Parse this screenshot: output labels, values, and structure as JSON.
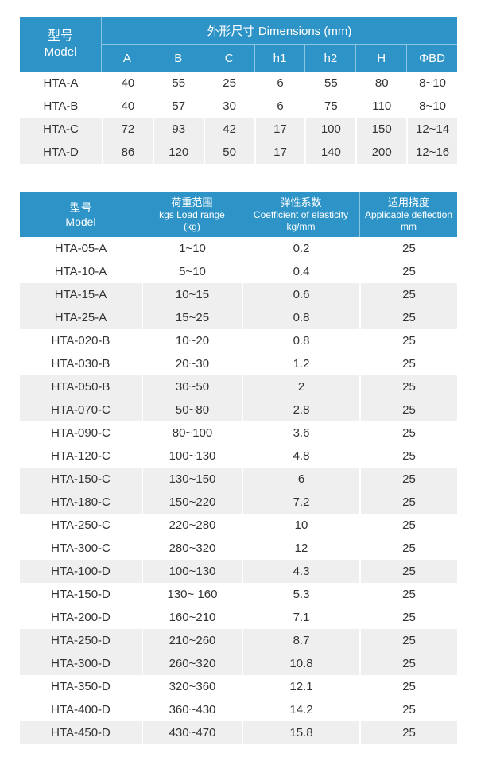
{
  "colors": {
    "header_blue": "#2E94C8",
    "stripe_gray": "#EFEFEF",
    "body_text": "#333333",
    "header_text": "#ffffff"
  },
  "dimensions_table": {
    "model_header_zh": "型号",
    "model_header_en": "Model",
    "group_header": "外形尺寸 Dimensions (mm)",
    "columns": [
      "A",
      "B",
      "C",
      "h1",
      "h2",
      "H",
      "ΦBD"
    ],
    "rows": [
      {
        "model": "HTA-A",
        "values": [
          "40",
          "55",
          "25",
          "6",
          "55",
          "80",
          "8~10"
        ],
        "shaded": false
      },
      {
        "model": "HTA-B",
        "values": [
          "40",
          "57",
          "30",
          "6",
          "75",
          "110",
          "8~10"
        ],
        "shaded": false
      },
      {
        "model": "HTA-C",
        "values": [
          "72",
          "93",
          "42",
          "17",
          "100",
          "150",
          "12~14"
        ],
        "shaded": true
      },
      {
        "model": "HTA-D",
        "values": [
          "86",
          "120",
          "50",
          "17",
          "140",
          "200",
          "12~16"
        ],
        "shaded": true
      }
    ]
  },
  "spec_table": {
    "headers": [
      {
        "lines": [
          "型号",
          "Model"
        ]
      },
      {
        "lines": [
          "荷重范围",
          "kgs Load range",
          "(kg)"
        ]
      },
      {
        "lines": [
          "弹性系数",
          "Coefficient of elasticity",
          "kg/mm"
        ]
      },
      {
        "lines": [
          "适用挠度",
          "Applicable deflection",
          "mm"
        ]
      }
    ],
    "rows": [
      {
        "model": "HTA-05-A",
        "load_range": "1~10",
        "coefficient": "0.2",
        "deflection": "25",
        "shaded": false
      },
      {
        "model": "HTA-10-A",
        "load_range": "5~10",
        "coefficient": "0.4",
        "deflection": "25",
        "shaded": false
      },
      {
        "model": "HTA-15-A",
        "load_range": "10~15",
        "coefficient": "0.6",
        "deflection": "25",
        "shaded": true
      },
      {
        "model": "HTA-25-A",
        "load_range": "15~25",
        "coefficient": "0.8",
        "deflection": "25",
        "shaded": true
      },
      {
        "model": "HTA-020-B",
        "load_range": "10~20",
        "coefficient": "0.8",
        "deflection": "25",
        "shaded": false
      },
      {
        "model": "HTA-030-B",
        "load_range": "20~30",
        "coefficient": "1.2",
        "deflection": "25",
        "shaded": false
      },
      {
        "model": "HTA-050-B",
        "load_range": "30~50",
        "coefficient": "2",
        "deflection": "25",
        "shaded": true
      },
      {
        "model": "HTA-070-C",
        "load_range": "50~80",
        "coefficient": "2.8",
        "deflection": "25",
        "shaded": true
      },
      {
        "model": "HTA-090-C",
        "load_range": "80~100",
        "coefficient": "3.6",
        "deflection": "25",
        "shaded": false
      },
      {
        "model": "HTA-120-C",
        "load_range": "100~130",
        "coefficient": "4.8",
        "deflection": "25",
        "shaded": false
      },
      {
        "model": "HTA-150-C",
        "load_range": "130~150",
        "coefficient": "6",
        "deflection": "25",
        "shaded": true
      },
      {
        "model": "HTA-180-C",
        "load_range": "150~220",
        "coefficient": "7.2",
        "deflection": "25",
        "shaded": true
      },
      {
        "model": "HTA-250-C",
        "load_range": "220~280",
        "coefficient": "10",
        "deflection": "25",
        "shaded": false
      },
      {
        "model": "HTA-300-C",
        "load_range": "280~320",
        "coefficient": "12",
        "deflection": "25",
        "shaded": false
      },
      {
        "model": "HTA-100-D",
        "load_range": "100~130",
        "coefficient": "4.3",
        "deflection": "25",
        "shaded": true
      },
      {
        "model": "HTA-150-D",
        "load_range": "130~ 160",
        "coefficient": "5.3",
        "deflection": "25",
        "shaded": false
      },
      {
        "model": "HTA-200-D",
        "load_range": "160~210",
        "coefficient": "7.1",
        "deflection": "25",
        "shaded": false
      },
      {
        "model": "HTA-250-D",
        "load_range": "210~260",
        "coefficient": "8.7",
        "deflection": "25",
        "shaded": true
      },
      {
        "model": "HTA-300-D",
        "load_range": "260~320",
        "coefficient": "10.8",
        "deflection": "25",
        "shaded": true
      },
      {
        "model": "HTA-350-D",
        "load_range": "320~360",
        "coefficient": "12.1",
        "deflection": "25",
        "shaded": false
      },
      {
        "model": "HTA-400-D",
        "load_range": "360~430",
        "coefficient": "14.2",
        "deflection": "25",
        "shaded": false
      },
      {
        "model": "HTA-450-D",
        "load_range": "430~470",
        "coefficient": "15.8",
        "deflection": "25",
        "shaded": true
      }
    ]
  }
}
